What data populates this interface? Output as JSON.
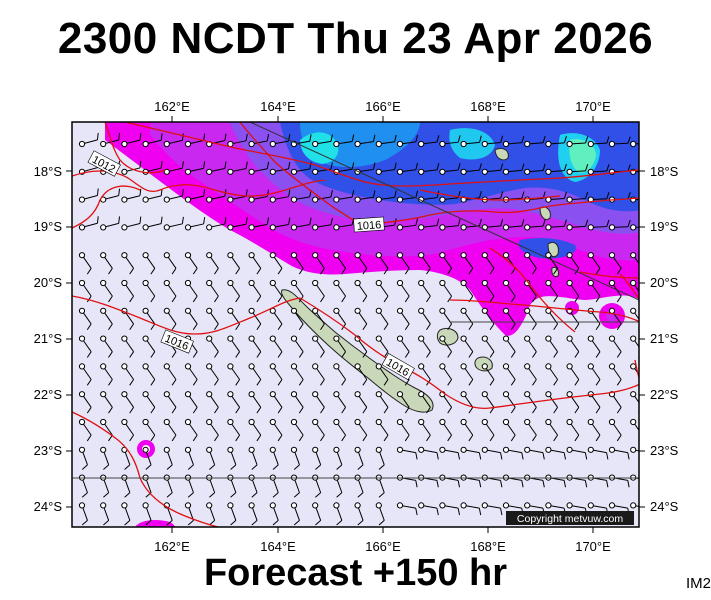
{
  "title": "2300 NCDT Thu 23 Apr 2026",
  "subtitle": "Forecast +150 hr",
  "badge": "IM2",
  "copyright": "Copyright metvuw.com",
  "map": {
    "lon_labels": [
      "162°E",
      "164°E",
      "166°E",
      "168°E",
      "170°E"
    ],
    "lat_labels": [
      "18°S",
      "19°S",
      "20°S",
      "21°S",
      "22°S",
      "23°S",
      "24°S"
    ],
    "isobar_labels": [
      "1012",
      "1016",
      "1016",
      "1016"
    ],
    "isobar_color": "#e01010",
    "land_color": "#c8d8b8",
    "background_color": "#e6e6f8"
  }
}
